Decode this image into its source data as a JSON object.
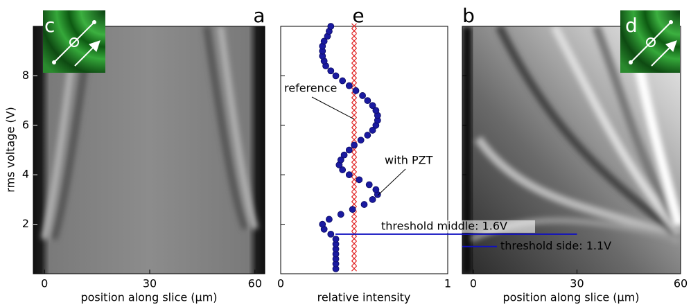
{
  "chart_data": [
    {
      "type": "image",
      "panel_label": "a",
      "inset_label": "c",
      "xlabel": "position along slice (µm)",
      "ylabel": "rms voltage (V)",
      "xlim": [
        -3.2,
        62.8
      ],
      "xticks": [
        0,
        30,
        60
      ],
      "ylim": [
        0,
        10
      ],
      "yticks": [
        2,
        4,
        6,
        8
      ]
    },
    {
      "type": "scatter",
      "panel_label": "e",
      "xlabel": "relative intensity",
      "xlim": [
        0,
        1
      ],
      "xticks": [
        0,
        1
      ],
      "ylim": [
        0,
        10
      ],
      "annotations": [
        "reference",
        "with PZT"
      ],
      "series": [
        {
          "name": "with PZT",
          "color": "#1a1aa0",
          "x": [
            0.33,
            0.33,
            0.33,
            0.33,
            0.33,
            0.33,
            0.33,
            0.3,
            0.26,
            0.25,
            0.29,
            0.36,
            0.43,
            0.5,
            0.55,
            0.58,
            0.57,
            0.53,
            0.47,
            0.41,
            0.37,
            0.35,
            0.36,
            0.38,
            0.41,
            0.44,
            0.48,
            0.52,
            0.55,
            0.57,
            0.58,
            0.58,
            0.57,
            0.55,
            0.52,
            0.49,
            0.45,
            0.41,
            0.37,
            0.33,
            0.3,
            0.27,
            0.26,
            0.25,
            0.25,
            0.25,
            0.26,
            0.28,
            0.29,
            0.3
          ],
          "y": [
            0.2,
            0.4,
            0.6,
            0.8,
            1.0,
            1.2,
            1.4,
            1.6,
            1.8,
            2.0,
            2.2,
            2.4,
            2.6,
            2.8,
            3.0,
            3.2,
            3.4,
            3.6,
            3.8,
            4.0,
            4.2,
            4.4,
            4.6,
            4.8,
            5.0,
            5.2,
            5.4,
            5.6,
            5.8,
            6.0,
            6.2,
            6.4,
            6.6,
            6.8,
            7.0,
            7.2,
            7.4,
            7.6,
            7.8,
            8.0,
            8.2,
            8.4,
            8.6,
            8.8,
            9.0,
            9.2,
            9.4,
            9.6,
            9.8,
            10.0
          ]
        },
        {
          "name": "reference",
          "color": "#e02020",
          "x": [
            0.44,
            0.44,
            0.44,
            0.44,
            0.44,
            0.44,
            0.44,
            0.44,
            0.44,
            0.44,
            0.44,
            0.44,
            0.44,
            0.44,
            0.44,
            0.44,
            0.44,
            0.44,
            0.44,
            0.44,
            0.44,
            0.44,
            0.44,
            0.44,
            0.44,
            0.44,
            0.44,
            0.44,
            0.44,
            0.44,
            0.44,
            0.44,
            0.44,
            0.44,
            0.44,
            0.44,
            0.44,
            0.44,
            0.44,
            0.44,
            0.44,
            0.44,
            0.44,
            0.44,
            0.44,
            0.44,
            0.44,
            0.44,
            0.44,
            0.44
          ],
          "y": [
            0.2,
            0.4,
            0.6,
            0.8,
            1.0,
            1.2,
            1.4,
            1.6,
            1.8,
            2.0,
            2.2,
            2.4,
            2.6,
            2.8,
            3.0,
            3.2,
            3.4,
            3.6,
            3.8,
            4.0,
            4.2,
            4.4,
            4.6,
            4.8,
            5.0,
            5.2,
            5.4,
            5.6,
            5.8,
            6.0,
            6.2,
            6.4,
            6.6,
            6.8,
            7.0,
            7.2,
            7.4,
            7.6,
            7.8,
            8.0,
            8.2,
            8.4,
            8.6,
            8.8,
            9.0,
            9.2,
            9.4,
            9.6,
            9.8,
            10.0
          ]
        }
      ]
    },
    {
      "type": "image",
      "panel_label": "b",
      "inset_label": "d",
      "xlabel": "position along slice (µm)",
      "xlim": [
        -3.2,
        60
      ],
      "xticks": [
        0,
        30,
        60
      ],
      "ylim": [
        0,
        10
      ],
      "thresholds": [
        {
          "label": "threshold middle: 1.6V",
          "value": 1.6
        },
        {
          "label": "threshold side: 1.1V",
          "value": 1.1
        }
      ]
    }
  ]
}
